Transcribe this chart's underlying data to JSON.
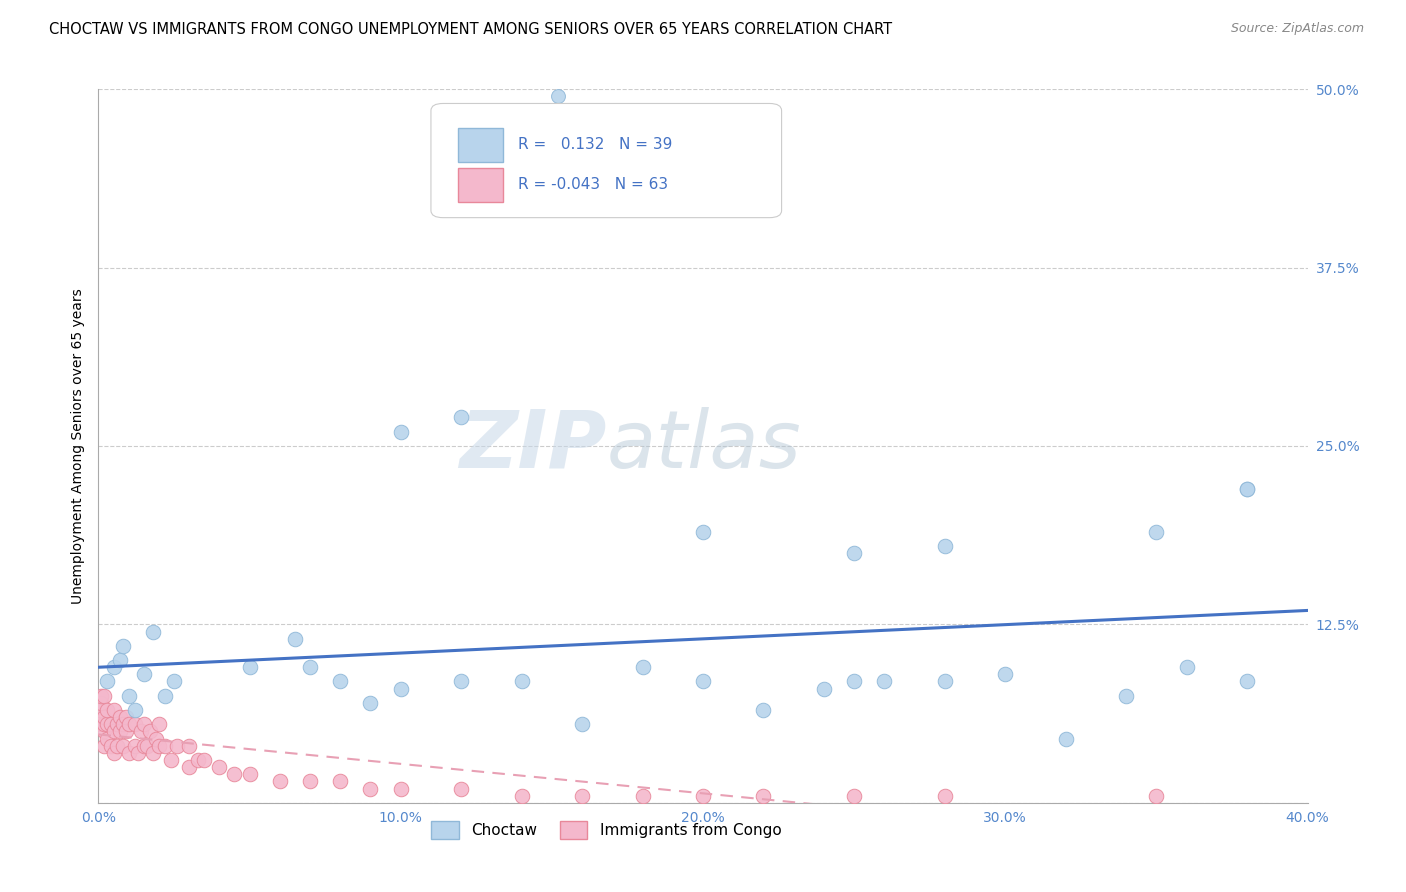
{
  "title": "CHOCTAW VS IMMIGRANTS FROM CONGO UNEMPLOYMENT AMONG SENIORS OVER 65 YEARS CORRELATION CHART",
  "source": "Source: ZipAtlas.com",
  "ylabel": "Unemployment Among Seniors over 65 years",
  "xlim": [
    0.0,
    0.4
  ],
  "ylim": [
    0.0,
    0.5
  ],
  "xticks": [
    0.0,
    0.1,
    0.2,
    0.3,
    0.4
  ],
  "yticks": [
    0.0,
    0.125,
    0.25,
    0.375,
    0.5
  ],
  "xtick_labels": [
    "0.0%",
    "10.0%",
    "20.0%",
    "30.0%",
    "40.0%"
  ],
  "ytick_labels": [
    "",
    "12.5%",
    "25.0%",
    "37.5%",
    "50.0%"
  ],
  "watermark_zip": "ZIP",
  "watermark_atlas": "atlas",
  "choctaw_color": "#b8d4ec",
  "choctaw_edge": "#90b8d8",
  "congo_color": "#f4b8cc",
  "congo_edge": "#e8889a",
  "regression_blue": "#4472c4",
  "regression_pink": "#e8a0b4",
  "legend_r_choctaw": "0.132",
  "legend_n_choctaw": "39",
  "legend_r_congo": "-0.043",
  "legend_n_congo": "63",
  "choctaw_x": [
    0.003,
    0.005,
    0.007,
    0.008,
    0.01,
    0.012,
    0.015,
    0.018,
    0.022,
    0.025,
    0.05,
    0.065,
    0.07,
    0.08,
    0.09,
    0.1,
    0.12,
    0.14,
    0.16,
    0.18,
    0.2,
    0.22,
    0.24,
    0.25,
    0.26,
    0.28,
    0.3,
    0.32,
    0.34,
    0.36,
    0.38,
    0.38,
    0.1,
    0.12,
    0.2,
    0.25,
    0.28,
    0.35,
    0.38
  ],
  "choctaw_y": [
    0.085,
    0.095,
    0.1,
    0.11,
    0.075,
    0.065,
    0.09,
    0.12,
    0.075,
    0.085,
    0.095,
    0.115,
    0.095,
    0.085,
    0.07,
    0.08,
    0.085,
    0.085,
    0.055,
    0.095,
    0.085,
    0.065,
    0.08,
    0.085,
    0.085,
    0.085,
    0.09,
    0.045,
    0.075,
    0.095,
    0.085,
    0.22,
    0.26,
    0.27,
    0.19,
    0.175,
    0.18,
    0.19,
    0.22
  ],
  "congo_x": [
    0.001,
    0.001,
    0.001,
    0.001,
    0.002,
    0.002,
    0.002,
    0.002,
    0.002,
    0.003,
    0.003,
    0.003,
    0.004,
    0.004,
    0.005,
    0.005,
    0.005,
    0.006,
    0.006,
    0.007,
    0.007,
    0.008,
    0.008,
    0.009,
    0.009,
    0.01,
    0.01,
    0.012,
    0.012,
    0.013,
    0.014,
    0.015,
    0.015,
    0.016,
    0.017,
    0.018,
    0.019,
    0.02,
    0.02,
    0.022,
    0.024,
    0.026,
    0.03,
    0.03,
    0.033,
    0.035,
    0.04,
    0.045,
    0.05,
    0.06,
    0.07,
    0.08,
    0.09,
    0.1,
    0.12,
    0.14,
    0.16,
    0.18,
    0.2,
    0.22,
    0.25,
    0.28,
    0.35
  ],
  "congo_y": [
    0.055,
    0.065,
    0.07,
    0.075,
    0.04,
    0.05,
    0.055,
    0.06,
    0.075,
    0.045,
    0.055,
    0.065,
    0.04,
    0.055,
    0.035,
    0.05,
    0.065,
    0.04,
    0.055,
    0.05,
    0.06,
    0.04,
    0.055,
    0.05,
    0.06,
    0.035,
    0.055,
    0.04,
    0.055,
    0.035,
    0.05,
    0.04,
    0.055,
    0.04,
    0.05,
    0.035,
    0.045,
    0.04,
    0.055,
    0.04,
    0.03,
    0.04,
    0.025,
    0.04,
    0.03,
    0.03,
    0.025,
    0.02,
    0.02,
    0.015,
    0.015,
    0.015,
    0.01,
    0.01,
    0.01,
    0.005,
    0.005,
    0.005,
    0.005,
    0.005,
    0.005,
    0.005,
    0.005
  ],
  "title_fontsize": 10.5,
  "source_fontsize": 9,
  "tick_fontsize": 10,
  "ylabel_fontsize": 10
}
